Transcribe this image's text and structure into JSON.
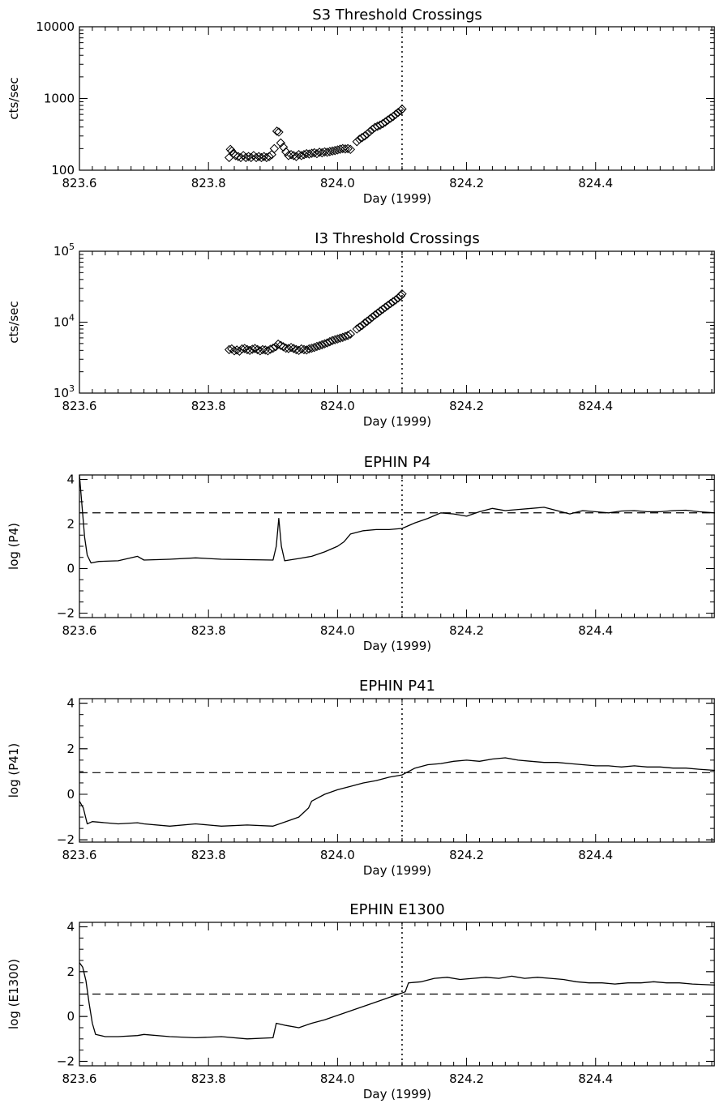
{
  "chart_data": [
    {
      "type": "scatter",
      "title": "S3 Threshold Crossings",
      "xlabel": "Day (1999)",
      "ylabel": "cts/sec",
      "yscale": "log",
      "xlim": [
        823.6,
        824.585
      ],
      "ylim": [
        100,
        10000
      ],
      "xticks": [
        "823.6",
        "823.8",
        "824.0",
        "824.2",
        "824.4"
      ],
      "yticks": [
        {
          "v": 100,
          "label": "100"
        },
        {
          "v": 1000,
          "label": "1000"
        },
        {
          "v": 10000,
          "label": "10000"
        }
      ],
      "marker": "diamond",
      "marker_line": 824.1,
      "points": [
        [
          823.832,
          150
        ],
        [
          823.834,
          195
        ],
        [
          823.836,
          185
        ],
        [
          823.838,
          170
        ],
        [
          823.842,
          160
        ],
        [
          823.846,
          155
        ],
        [
          823.85,
          150
        ],
        [
          823.854,
          160
        ],
        [
          823.858,
          150
        ],
        [
          823.862,
          155
        ],
        [
          823.866,
          150
        ],
        [
          823.87,
          160
        ],
        [
          823.874,
          150
        ],
        [
          823.878,
          155
        ],
        [
          823.882,
          150
        ],
        [
          823.886,
          155
        ],
        [
          823.89,
          150
        ],
        [
          823.894,
          155
        ],
        [
          823.898,
          165
        ],
        [
          823.902,
          200
        ],
        [
          823.906,
          350
        ],
        [
          823.909,
          340
        ],
        [
          823.912,
          240
        ],
        [
          823.916,
          210
        ],
        [
          823.92,
          180
        ],
        [
          823.924,
          160
        ],
        [
          823.928,
          165
        ],
        [
          823.932,
          160
        ],
        [
          823.936,
          155
        ],
        [
          823.94,
          165
        ],
        [
          823.944,
          160
        ],
        [
          823.948,
          165
        ],
        [
          823.952,
          170
        ],
        [
          823.956,
          168
        ],
        [
          823.96,
          172
        ],
        [
          823.964,
          175
        ],
        [
          823.968,
          170
        ],
        [
          823.972,
          178
        ],
        [
          823.976,
          175
        ],
        [
          823.98,
          180
        ],
        [
          823.984,
          178
        ],
        [
          823.988,
          182
        ],
        [
          823.992,
          185
        ],
        [
          823.996,
          188
        ],
        [
          824.0,
          192
        ],
        [
          824.004,
          196
        ],
        [
          824.008,
          200
        ],
        [
          824.012,
          198
        ],
        [
          824.016,
          200
        ],
        [
          824.02,
          195
        ],
        [
          824.03,
          250
        ],
        [
          824.034,
          270
        ],
        [
          824.038,
          285
        ],
        [
          824.042,
          300
        ],
        [
          824.046,
          320
        ],
        [
          824.05,
          345
        ],
        [
          824.054,
          370
        ],
        [
          824.058,
          395
        ],
        [
          824.062,
          410
        ],
        [
          824.066,
          425
        ],
        [
          824.07,
          445
        ],
        [
          824.074,
          470
        ],
        [
          824.078,
          500
        ],
        [
          824.082,
          530
        ],
        [
          824.086,
          560
        ],
        [
          824.09,
          600
        ],
        [
          824.094,
          640
        ],
        [
          824.098,
          680
        ],
        [
          824.1,
          710
        ]
      ]
    },
    {
      "type": "scatter",
      "title": "I3 Threshold Crossings",
      "xlabel": "Day (1999)",
      "ylabel": "cts/sec",
      "yscale": "log",
      "xlim": [
        823.6,
        824.585
      ],
      "ylim": [
        1000,
        100000
      ],
      "xticks": [
        "823.6",
        "823.8",
        "824.0",
        "824.2",
        "824.4"
      ],
      "yticks": [
        {
          "v": 1000,
          "base": "10",
          "exp": "3"
        },
        {
          "v": 10000,
          "base": "10",
          "exp": "4"
        },
        {
          "v": 100000,
          "base": "10",
          "exp": "5"
        }
      ],
      "marker": "diamond",
      "marker_line": 824.1,
      "points": [
        [
          823.832,
          4100
        ],
        [
          823.836,
          4200
        ],
        [
          823.84,
          3950
        ],
        [
          823.844,
          4050
        ],
        [
          823.848,
          3900
        ],
        [
          823.852,
          4200
        ],
        [
          823.856,
          4250
        ],
        [
          823.86,
          4100
        ],
        [
          823.864,
          4000
        ],
        [
          823.868,
          4150
        ],
        [
          823.872,
          4250
        ],
        [
          823.876,
          4100
        ],
        [
          823.88,
          3950
        ],
        [
          823.884,
          4100
        ],
        [
          823.888,
          4050
        ],
        [
          823.892,
          3950
        ],
        [
          823.896,
          4150
        ],
        [
          823.9,
          4300
        ],
        [
          823.904,
          4500
        ],
        [
          823.908,
          4900
        ],
        [
          823.912,
          4700
        ],
        [
          823.916,
          4500
        ],
        [
          823.92,
          4300
        ],
        [
          823.924,
          4250
        ],
        [
          823.928,
          4400
        ],
        [
          823.932,
          4250
        ],
        [
          823.936,
          4100
        ],
        [
          823.94,
          4000
        ],
        [
          823.944,
          4200
        ],
        [
          823.948,
          4100
        ],
        [
          823.952,
          4050
        ],
        [
          823.956,
          4200
        ],
        [
          823.96,
          4300
        ],
        [
          823.964,
          4400
        ],
        [
          823.968,
          4550
        ],
        [
          823.972,
          4650
        ],
        [
          823.976,
          4800
        ],
        [
          823.98,
          4950
        ],
        [
          823.984,
          5100
        ],
        [
          823.988,
          5300
        ],
        [
          823.992,
          5500
        ],
        [
          823.996,
          5650
        ],
        [
          824.0,
          5800
        ],
        [
          824.004,
          5950
        ],
        [
          824.008,
          6100
        ],
        [
          824.012,
          6300
        ],
        [
          824.016,
          6500
        ],
        [
          824.02,
          6800
        ],
        [
          824.03,
          8000
        ],
        [
          824.034,
          8500
        ],
        [
          824.038,
          9000
        ],
        [
          824.042,
          9700
        ],
        [
          824.046,
          10300
        ],
        [
          824.05,
          11000
        ],
        [
          824.054,
          11800
        ],
        [
          824.058,
          12600
        ],
        [
          824.062,
          13400
        ],
        [
          824.066,
          14300
        ],
        [
          824.07,
          15200
        ],
        [
          824.074,
          16200
        ],
        [
          824.078,
          17200
        ],
        [
          824.082,
          18300
        ],
        [
          824.086,
          19400
        ],
        [
          824.09,
          20600
        ],
        [
          824.094,
          22000
        ],
        [
          824.098,
          23500
        ],
        [
          824.1,
          25000
        ]
      ]
    },
    {
      "type": "line",
      "title": "EPHIN P4",
      "xlabel": "Day (1999)",
      "ylabel": "log (P4)",
      "xlim": [
        823.6,
        824.585
      ],
      "ylim": [
        -2.2,
        4.2
      ],
      "xticks": [
        "823.6",
        "823.8",
        "824.0",
        "824.2",
        "824.4"
      ],
      "yticks": [
        {
          "v": -2,
          "label": "−2"
        },
        {
          "v": 0,
          "label": "0"
        },
        {
          "v": 2,
          "label": "2"
        },
        {
          "v": 4,
          "label": "4"
        }
      ],
      "threshold": 2.5,
      "marker_line": 824.1,
      "points": [
        [
          823.6,
          4.2
        ],
        [
          823.604,
          2.8
        ],
        [
          823.608,
          1.4
        ],
        [
          823.612,
          0.6
        ],
        [
          823.618,
          0.25
        ],
        [
          823.63,
          0.32
        ],
        [
          823.66,
          0.35
        ],
        [
          823.69,
          0.55
        ],
        [
          823.7,
          0.38
        ],
        [
          823.74,
          0.42
        ],
        [
          823.78,
          0.48
        ],
        [
          823.82,
          0.42
        ],
        [
          823.86,
          0.4
        ],
        [
          823.9,
          0.38
        ],
        [
          823.905,
          1.0
        ],
        [
          823.909,
          2.25
        ],
        [
          823.913,
          1.0
        ],
        [
          823.918,
          0.35
        ],
        [
          823.94,
          0.45
        ],
        [
          823.96,
          0.55
        ],
        [
          823.98,
          0.75
        ],
        [
          824.0,
          1.0
        ],
        [
          824.01,
          1.2
        ],
        [
          824.02,
          1.55
        ],
        [
          824.04,
          1.7
        ],
        [
          824.06,
          1.75
        ],
        [
          824.08,
          1.75
        ],
        [
          824.1,
          1.8
        ],
        [
          824.12,
          2.05
        ],
        [
          824.14,
          2.25
        ],
        [
          824.16,
          2.5
        ],
        [
          824.18,
          2.45
        ],
        [
          824.2,
          2.35
        ],
        [
          824.22,
          2.55
        ],
        [
          824.24,
          2.7
        ],
        [
          824.26,
          2.6
        ],
        [
          824.28,
          2.65
        ],
        [
          824.3,
          2.7
        ],
        [
          824.32,
          2.75
        ],
        [
          824.34,
          2.6
        ],
        [
          824.36,
          2.45
        ],
        [
          824.38,
          2.6
        ],
        [
          824.4,
          2.55
        ],
        [
          824.42,
          2.5
        ],
        [
          824.44,
          2.58
        ],
        [
          824.46,
          2.6
        ],
        [
          824.48,
          2.55
        ],
        [
          824.5,
          2.55
        ],
        [
          824.52,
          2.6
        ],
        [
          824.54,
          2.62
        ],
        [
          824.56,
          2.55
        ],
        [
          824.585,
          2.5
        ]
      ]
    },
    {
      "type": "line",
      "title": "EPHIN P41",
      "xlabel": "Day (1999)",
      "ylabel": "log (P41)",
      "xlim": [
        823.6,
        824.585
      ],
      "ylim": [
        -2.1,
        4.2
      ],
      "xticks": [
        "823.6",
        "823.8",
        "824.0",
        "824.2",
        "824.4"
      ],
      "yticks": [
        {
          "v": -2,
          "label": "−2"
        },
        {
          "v": 0,
          "label": "0"
        },
        {
          "v": 2,
          "label": "2"
        },
        {
          "v": 4,
          "label": "4"
        }
      ],
      "threshold": 0.95,
      "marker_line": 824.1,
      "points": [
        [
          823.6,
          -0.3
        ],
        [
          823.606,
          -0.6
        ],
        [
          823.612,
          -1.3
        ],
        [
          823.62,
          -1.2
        ],
        [
          823.64,
          -1.25
        ],
        [
          823.66,
          -1.3
        ],
        [
          823.69,
          -1.25
        ],
        [
          823.7,
          -1.3
        ],
        [
          823.74,
          -1.4
        ],
        [
          823.78,
          -1.3
        ],
        [
          823.82,
          -1.4
        ],
        [
          823.86,
          -1.35
        ],
        [
          823.9,
          -1.4
        ],
        [
          823.92,
          -1.2
        ],
        [
          823.94,
          -1.0
        ],
        [
          823.955,
          -0.6
        ],
        [
          823.96,
          -0.3
        ],
        [
          823.98,
          0.0
        ],
        [
          824.0,
          0.2
        ],
        [
          824.02,
          0.35
        ],
        [
          824.04,
          0.5
        ],
        [
          824.06,
          0.6
        ],
        [
          824.08,
          0.75
        ],
        [
          824.1,
          0.85
        ],
        [
          824.12,
          1.15
        ],
        [
          824.14,
          1.3
        ],
        [
          824.16,
          1.35
        ],
        [
          824.18,
          1.45
        ],
        [
          824.2,
          1.5
        ],
        [
          824.22,
          1.45
        ],
        [
          824.24,
          1.55
        ],
        [
          824.26,
          1.6
        ],
        [
          824.28,
          1.5
        ],
        [
          824.3,
          1.45
        ],
        [
          824.32,
          1.4
        ],
        [
          824.34,
          1.4
        ],
        [
          824.36,
          1.35
        ],
        [
          824.38,
          1.3
        ],
        [
          824.4,
          1.25
        ],
        [
          824.42,
          1.25
        ],
        [
          824.44,
          1.2
        ],
        [
          824.46,
          1.25
        ],
        [
          824.48,
          1.2
        ],
        [
          824.5,
          1.2
        ],
        [
          824.52,
          1.15
        ],
        [
          824.54,
          1.15
        ],
        [
          824.56,
          1.1
        ],
        [
          824.585,
          1.05
        ]
      ]
    },
    {
      "type": "line",
      "title": "EPHIN E1300",
      "xlabel": "Day (1999)",
      "ylabel": "log (E1300)",
      "xlim": [
        823.6,
        824.585
      ],
      "ylim": [
        -2.2,
        4.2
      ],
      "xticks": [
        "823.6",
        "823.8",
        "824.0",
        "824.2",
        "824.4"
      ],
      "yticks": [
        {
          "v": -2,
          "label": "−2"
        },
        {
          "v": 0,
          "label": "0"
        },
        {
          "v": 2,
          "label": "2"
        },
        {
          "v": 4,
          "label": "4"
        }
      ],
      "threshold": 1.0,
      "marker_line": 824.1,
      "points": [
        [
          823.6,
          2.4
        ],
        [
          823.605,
          2.2
        ],
        [
          823.61,
          1.6
        ],
        [
          823.615,
          0.6
        ],
        [
          823.62,
          -0.3
        ],
        [
          823.625,
          -0.8
        ],
        [
          823.64,
          -0.9
        ],
        [
          823.66,
          -0.9
        ],
        [
          823.69,
          -0.85
        ],
        [
          823.7,
          -0.8
        ],
        [
          823.74,
          -0.9
        ],
        [
          823.78,
          -0.95
        ],
        [
          823.82,
          -0.9
        ],
        [
          823.86,
          -1.0
        ],
        [
          823.9,
          -0.95
        ],
        [
          823.905,
          -0.3
        ],
        [
          823.92,
          -0.4
        ],
        [
          823.94,
          -0.5
        ],
        [
          823.96,
          -0.3
        ],
        [
          823.98,
          -0.15
        ],
        [
          824.0,
          0.05
        ],
        [
          824.02,
          0.25
        ],
        [
          824.04,
          0.45
        ],
        [
          824.06,
          0.65
        ],
        [
          824.08,
          0.85
        ],
        [
          824.1,
          1.05
        ],
        [
          824.105,
          1.1
        ],
        [
          824.11,
          1.5
        ],
        [
          824.13,
          1.55
        ],
        [
          824.15,
          1.7
        ],
        [
          824.17,
          1.75
        ],
        [
          824.19,
          1.65
        ],
        [
          824.21,
          1.7
        ],
        [
          824.23,
          1.75
        ],
        [
          824.25,
          1.7
        ],
        [
          824.27,
          1.8
        ],
        [
          824.29,
          1.7
        ],
        [
          824.31,
          1.75
        ],
        [
          824.33,
          1.7
        ],
        [
          824.35,
          1.65
        ],
        [
          824.37,
          1.55
        ],
        [
          824.39,
          1.5
        ],
        [
          824.41,
          1.5
        ],
        [
          824.43,
          1.45
        ],
        [
          824.45,
          1.5
        ],
        [
          824.47,
          1.5
        ],
        [
          824.49,
          1.55
        ],
        [
          824.51,
          1.5
        ],
        [
          824.53,
          1.5
        ],
        [
          824.55,
          1.45
        ],
        [
          824.585,
          1.4
        ]
      ]
    }
  ]
}
